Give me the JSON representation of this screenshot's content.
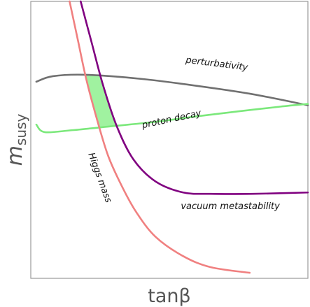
{
  "chart_data": {
    "type": "line",
    "title": "",
    "xlabel": "tanβ",
    "ylabel": "m_susy",
    "ylabel_main": "m",
    "ylabel_sub": "susy",
    "xlim": [
      0,
      100
    ],
    "ylim": [
      0,
      100
    ],
    "ticks": "none",
    "grid": false,
    "legend": "none",
    "series": [
      {
        "name": "perturbativity",
        "color": "#707070",
        "x": [
          2,
          8,
          20,
          40,
          60,
          80,
          100
        ],
        "y": [
          71,
          73,
          73.5,
          72,
          69.5,
          66.5,
          62.5
        ]
      },
      {
        "name": "proton decay",
        "color": "#7be87b",
        "x": [
          2,
          5,
          15,
          30,
          45,
          60,
          75,
          90,
          100
        ],
        "y": [
          55.5,
          52.8,
          53.5,
          55,
          56.5,
          58.5,
          60.3,
          62,
          63
        ]
      },
      {
        "name": "Higgs mass",
        "color": "#f08080",
        "x": [
          14,
          17,
          20,
          24,
          28,
          33,
          38,
          45,
          55,
          65,
          79
        ],
        "y": [
          100,
          86,
          72,
          57,
          44,
          33,
          24,
          15,
          8,
          4,
          2
        ]
      },
      {
        "name": "vacuum metastability",
        "color": "#800080",
        "x": [
          18,
          22,
          26,
          31,
          37,
          45,
          55,
          65,
          80,
          100
        ],
        "y": [
          100,
          85,
          70,
          55,
          43,
          35,
          31,
          30.5,
          30.5,
          31
        ]
      }
    ],
    "shaded_region": {
      "label": "",
      "fill": "#8ff08f",
      "bounded_by": [
        "perturbativity",
        "proton decay",
        "Higgs mass",
        "vacuum metastability"
      ]
    },
    "annotations": [
      {
        "text": "perturbativity",
        "series": "perturbativity",
        "x": 67,
        "y": 76.5,
        "rotation": 7
      },
      {
        "text": "proton decay",
        "series": "proton decay",
        "x": 51,
        "y": 56.5,
        "rotation": -12
      },
      {
        "text": "Higgs mass",
        "series": "Higgs mass",
        "x": 24,
        "y": 36,
        "rotation": 70
      },
      {
        "text": "vacuum metastability",
        "series": "vacuum metastability",
        "x": 72,
        "y": 25,
        "rotation": 0
      }
    ]
  }
}
